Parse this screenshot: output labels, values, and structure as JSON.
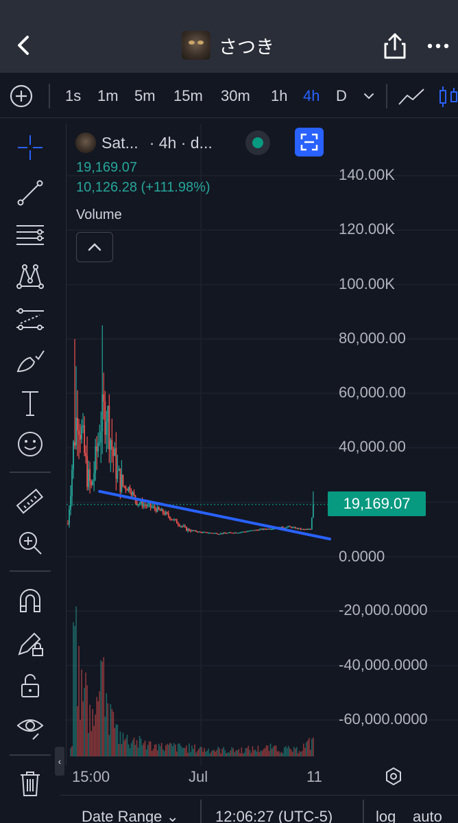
{
  "header": {
    "title": "さつき"
  },
  "timeframes": {
    "items": [
      "1s",
      "1m",
      "5m",
      "15m",
      "30m",
      "1h",
      "4h",
      "D"
    ],
    "active": "4h"
  },
  "legend": {
    "symbol": "Sat...",
    "meta": "· 4h · d...",
    "last_price": "19,169.07",
    "change": "10,126.28 (+111.98%)",
    "volume_label": "Volume"
  },
  "price_axis": {
    "labels": [
      "140.00K",
      "120.00K",
      "100.00K",
      "80,000.00",
      "60,000.00",
      "40,000.00",
      "0.0000",
      "-20,000.0000",
      "-40,000.0000",
      "-60,000.0000"
    ],
    "current_price": "19,169.07"
  },
  "time_axis": {
    "labels": [
      "15:00",
      "Jul",
      "11"
    ]
  },
  "bottom_bar": {
    "date_range": "Date Range",
    "clock": "12:06:27 (UTC-5)",
    "log": "log",
    "auto": "auto"
  },
  "colors": {
    "background": "#131722",
    "up": "#26a69a",
    "down": "#ef5350",
    "accent": "#2962ff",
    "trendline": "#2962ff",
    "price_tag": "#089981"
  },
  "chart_data": {
    "type": "candlestick",
    "interval": "4h",
    "last_price": 19169.07,
    "change": 10126.28,
    "change_pct": 111.98,
    "ylim": [
      -65000,
      145000
    ],
    "scale": "linear",
    "grid": true,
    "x_ticks": [
      "15:00",
      "Jul",
      "11"
    ],
    "price_path": [
      {
        "i": 0,
        "v": 12000
      },
      {
        "i": 4,
        "v": 40000
      },
      {
        "i": 7,
        "v": 55000
      },
      {
        "i": 10,
        "v": 45000
      },
      {
        "i": 14,
        "v": 30000
      },
      {
        "i": 17,
        "v": 25000
      },
      {
        "i": 20,
        "v": 35000
      },
      {
        "i": 24,
        "v": 50000
      },
      {
        "i": 28,
        "v": 55000
      },
      {
        "i": 32,
        "v": 40000
      },
      {
        "i": 36,
        "v": 30000
      },
      {
        "i": 40,
        "v": 26000
      },
      {
        "i": 45,
        "v": 25000
      },
      {
        "i": 50,
        "v": 20000
      },
      {
        "i": 56,
        "v": 19000
      },
      {
        "i": 62,
        "v": 18000
      },
      {
        "i": 70,
        "v": 16000
      },
      {
        "i": 78,
        "v": 13000
      },
      {
        "i": 86,
        "v": 10000
      },
      {
        "i": 96,
        "v": 9000
      },
      {
        "i": 110,
        "v": 8500
      },
      {
        "i": 125,
        "v": 9000
      },
      {
        "i": 140,
        "v": 10000
      },
      {
        "i": 150,
        "v": 10500
      },
      {
        "i": 160,
        "v": 11000
      },
      {
        "i": 170,
        "v": 10000
      },
      {
        "i": 176,
        "v": 10000
      },
      {
        "i": 178,
        "v": 19169
      }
    ],
    "spikes": [
      {
        "i": 5,
        "high": 80000
      },
      {
        "i": 6,
        "high": 70000
      },
      {
        "i": 25,
        "high": 85000
      },
      {
        "i": 29,
        "high": 55000
      },
      {
        "i": 178,
        "high": 24000
      }
    ],
    "trendline": {
      "start": {
        "i": 23,
        "v": 24000
      },
      "end": {
        "i": 190,
        "v": 6500
      }
    },
    "volume": [
      {
        "i": 4,
        "v": 0.85
      },
      {
        "i": 6,
        "v": 0.95
      },
      {
        "i": 8,
        "v": 0.7
      },
      {
        "i": 10,
        "v": 0.55
      },
      {
        "i": 14,
        "v": 0.45
      },
      {
        "i": 18,
        "v": 0.3
      },
      {
        "i": 22,
        "v": 0.35
      },
      {
        "i": 25,
        "v": 0.6
      },
      {
        "i": 28,
        "v": 0.4
      },
      {
        "i": 32,
        "v": 0.3
      },
      {
        "i": 36,
        "v": 0.2
      },
      {
        "i": 40,
        "v": 0.15
      },
      {
        "i": 48,
        "v": 0.12
      },
      {
        "i": 56,
        "v": 0.1
      },
      {
        "i": 66,
        "v": 0.08
      },
      {
        "i": 80,
        "v": 0.08
      },
      {
        "i": 96,
        "v": 0.06
      },
      {
        "i": 120,
        "v": 0.05
      },
      {
        "i": 150,
        "v": 0.07
      },
      {
        "i": 165,
        "v": 0.05
      },
      {
        "i": 178,
        "v": 0.12
      }
    ]
  }
}
